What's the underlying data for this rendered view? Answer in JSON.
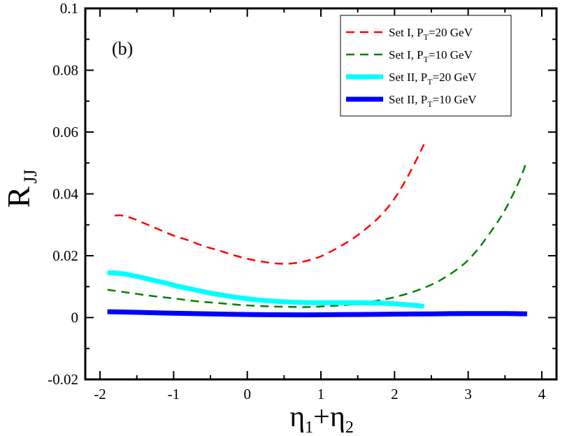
{
  "chart_data": {
    "type": "line",
    "panel_label": "(b)",
    "xlabel": {
      "main": "η",
      "sub1": "1",
      "plus": "+",
      "main2": "η",
      "sub2": "2"
    },
    "ylabel": {
      "main": "R",
      "sub": "JJ"
    },
    "xlim": [
      -2.2,
      4.2
    ],
    "ylim": [
      -0.02,
      0.1
    ],
    "x_ticks": [
      -2,
      -1,
      0,
      1,
      2,
      3,
      4
    ],
    "x_tick_labels": [
      "-2",
      "-1",
      "0",
      "1",
      "2",
      "3",
      "4"
    ],
    "y_ticks": [
      -0.02,
      0,
      0.02,
      0.04,
      0.06,
      0.08,
      0.1
    ],
    "y_tick_labels": [
      "-0.02",
      "0",
      "0.02",
      "0.04",
      "0.06",
      "0.08",
      "0.1"
    ],
    "legend_position": "top-right",
    "series": [
      {
        "name": "Set I, P_T=20 GeV",
        "legend": {
          "prefix": "Set I,  P",
          "sub": "T",
          "suffix": "=20 GeV"
        },
        "color": "#ff0000",
        "style": "dashed",
        "width": "thin",
        "x": [
          -1.8,
          -1.7,
          -1.55,
          -1.4,
          -1.2,
          -1.0,
          -0.8,
          -0.6,
          -0.4,
          -0.2,
          0.0,
          0.2,
          0.4,
          0.6,
          0.8,
          1.0,
          1.2,
          1.4,
          1.6,
          1.8,
          2.0,
          2.2,
          2.4
        ],
        "y": [
          0.033,
          0.033,
          0.032,
          0.0305,
          0.0285,
          0.0265,
          0.025,
          0.0232,
          0.0218,
          0.0203,
          0.019,
          0.0181,
          0.0175,
          0.0175,
          0.0183,
          0.0198,
          0.0222,
          0.025,
          0.0285,
          0.0327,
          0.0385,
          0.0465,
          0.056
        ]
      },
      {
        "name": "Set I, P_T=10 GeV",
        "legend": {
          "prefix": "Set I,  P",
          "sub": "T",
          "suffix": "=10 GeV"
        },
        "color": "#008000",
        "style": "dashed",
        "width": "thin",
        "x": [
          -1.9,
          -1.6,
          -1.3,
          -1.0,
          -0.7,
          -0.4,
          -0.1,
          0.2,
          0.5,
          0.8,
          1.1,
          1.4,
          1.7,
          2.0,
          2.3,
          2.6,
          2.9,
          3.1,
          3.3,
          3.5,
          3.7,
          3.8
        ],
        "y": [
          0.009,
          0.008,
          0.007,
          0.0062,
          0.0053,
          0.0047,
          0.0041,
          0.0037,
          0.0035,
          0.0034,
          0.0037,
          0.0042,
          0.0052,
          0.0066,
          0.0087,
          0.0118,
          0.0165,
          0.0212,
          0.0275,
          0.0348,
          0.0445,
          0.051
        ]
      },
      {
        "name": "Set II, P_T=20 GeV",
        "legend": {
          "prefix": "Set II, P",
          "sub": "T",
          "suffix": "=20 GeV"
        },
        "color": "#00ffff",
        "style": "solid",
        "width": "thick",
        "x": [
          -1.9,
          -1.7,
          -1.5,
          -1.3,
          -1.1,
          -0.9,
          -0.7,
          -0.5,
          -0.3,
          -0.1,
          0.1,
          0.3,
          0.5,
          0.7,
          0.9,
          1.1,
          1.3,
          1.5,
          1.7,
          1.9,
          2.1,
          2.3,
          2.4
        ],
        "y": [
          0.0145,
          0.0142,
          0.0133,
          0.0122,
          0.0111,
          0.0099,
          0.0089,
          0.0079,
          0.0071,
          0.0064,
          0.0058,
          0.0054,
          0.0051,
          0.0049,
          0.0048,
          0.0048,
          0.0048,
          0.0048,
          0.0047,
          0.0046,
          0.0043,
          0.0039,
          0.0036
        ]
      },
      {
        "name": "Set II, P_T=10 GeV",
        "legend": {
          "prefix": "Set II, P",
          "sub": "T",
          "suffix": "=10 GeV"
        },
        "color": "#0000ff",
        "style": "solid",
        "width": "thick",
        "x": [
          -1.9,
          -1.5,
          -1.0,
          -0.5,
          0.0,
          0.5,
          1.0,
          1.5,
          2.0,
          2.5,
          3.0,
          3.5,
          3.8
        ],
        "y": [
          0.0019,
          0.0017,
          0.0014,
          0.0012,
          0.001,
          0.0009,
          0.0009,
          0.001,
          0.0011,
          0.0012,
          0.0013,
          0.0013,
          0.0012
        ]
      }
    ]
  }
}
